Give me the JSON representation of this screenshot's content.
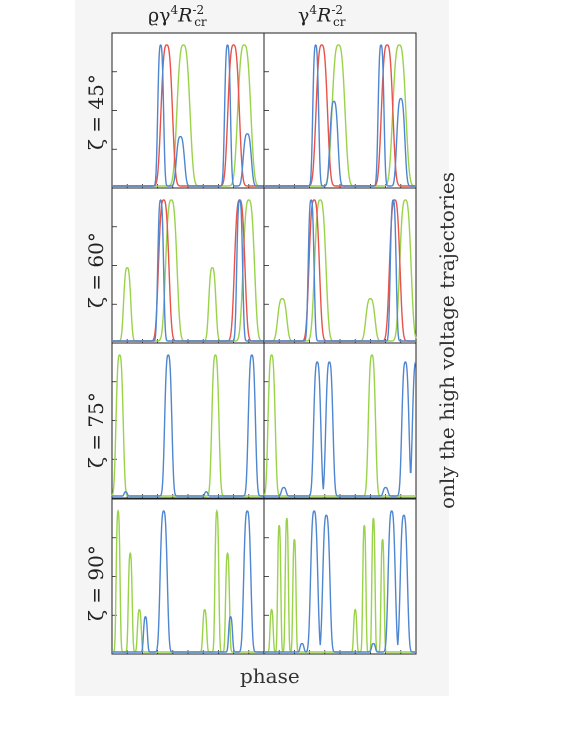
{
  "chart_data": {
    "type": "line",
    "xlabel": "phase",
    "side_label": "only the high voltage trajectories",
    "columns": [
      {
        "title_prefix": "ϱγ",
        "sup1": "4",
        "mid": "R",
        "sub": "cr",
        "sup2": "-2"
      },
      {
        "title_prefix": "γ",
        "sup1": "4",
        "mid": "R",
        "sub": "cr",
        "sup2": "-2"
      }
    ],
    "rows": [
      {
        "label": "ζ = 45°"
      },
      {
        "label": "ζ = 60°"
      },
      {
        "label": "ζ = 75°"
      },
      {
        "label": "ζ = 90°"
      }
    ],
    "xlim": [
      0,
      1
    ],
    "ylim": [
      0,
      1
    ],
    "series_colors": {
      "green": "#9ad24a",
      "red": "#e8524a",
      "blue": "#4f86d0"
    },
    "panels": [
      [
        {
          "green": [
            [
              0.47,
              0.04,
              1.0
            ],
            [
              0.87,
              0.04,
              1.0
            ]
          ],
          "red": [
            [
              0.36,
              0.035,
              1.0
            ],
            [
              0.8,
              0.035,
              1.0
            ]
          ],
          "blue": [
            [
              0.32,
              0.018,
              1.0
            ],
            [
              0.45,
              0.025,
              0.35
            ],
            [
              0.76,
              0.018,
              1.0
            ],
            [
              0.89,
              0.025,
              0.37
            ]
          ]
        },
        {
          "green": [
            [
              0.49,
              0.04,
              1.0
            ],
            [
              0.89,
              0.04,
              1.0
            ]
          ],
          "red": [
            [
              0.38,
              0.035,
              1.0
            ],
            [
              0.81,
              0.035,
              1.0
            ]
          ],
          "blue": [
            [
              0.34,
              0.018,
              1.0
            ],
            [
              0.46,
              0.025,
              0.6
            ],
            [
              0.77,
              0.018,
              1.0
            ],
            [
              0.9,
              0.025,
              0.62
            ]
          ]
        }
      ],
      [
        {
          "green": [
            [
              0.1,
              0.022,
              0.52
            ],
            [
              0.39,
              0.035,
              1.0
            ],
            [
              0.66,
              0.022,
              0.52
            ],
            [
              0.9,
              0.035,
              1.0
            ]
          ],
          "red": [
            [
              0.34,
              0.032,
              1.0
            ],
            [
              0.84,
              0.032,
              1.0
            ]
          ],
          "blue": [
            [
              0.32,
              0.018,
              1.0
            ],
            [
              0.84,
              0.018,
              1.0
            ]
          ]
        },
        {
          "green": [
            [
              0.12,
              0.028,
              0.3
            ],
            [
              0.37,
              0.035,
              1.0
            ],
            [
              0.7,
              0.028,
              0.3
            ],
            [
              0.93,
              0.035,
              1.0
            ]
          ],
          "red": [
            [
              0.33,
              0.032,
              1.0
            ],
            [
              0.86,
              0.032,
              1.0
            ]
          ],
          "blue": [
            [
              0.31,
              0.018,
              1.0
            ],
            [
              0.85,
              0.018,
              1.0
            ]
          ]
        }
      ],
      [
        {
          "green": [
            [
              0.05,
              0.022,
              1.0
            ],
            [
              0.68,
              0.022,
              1.0
            ]
          ],
          "blue": [
            [
              0.09,
              0.01,
              0.03
            ],
            [
              0.37,
              0.022,
              1.0
            ],
            [
              0.62,
              0.01,
              0.03
            ],
            [
              0.92,
              0.022,
              1.0
            ]
          ]
        },
        {
          "green": [
            [
              0.05,
              0.022,
              1.0
            ],
            [
              0.71,
              0.022,
              1.0
            ]
          ],
          "blue": [
            [
              0.13,
              0.015,
              0.06
            ],
            [
              0.35,
              0.022,
              0.95
            ],
            [
              0.43,
              0.022,
              0.95
            ],
            [
              0.8,
              0.015,
              0.06
            ],
            [
              0.93,
              0.022,
              0.95
            ],
            [
              1.0,
              0.022,
              0.95
            ]
          ]
        }
      ],
      [
        {
          "green": [
            [
              0.04,
              0.012,
              1.0
            ],
            [
              0.12,
              0.012,
              0.7
            ],
            [
              0.18,
              0.012,
              0.3
            ],
            [
              0.69,
              0.012,
              1.0
            ],
            [
              0.76,
              0.012,
              0.7
            ],
            [
              0.61,
              0.012,
              0.3
            ]
          ],
          "blue": [
            [
              0.34,
              0.022,
              1.0
            ],
            [
              0.22,
              0.012,
              0.25
            ],
            [
              0.89,
              0.022,
              1.0
            ],
            [
              0.78,
              0.012,
              0.25
            ]
          ]
        },
        {
          "green": [
            [
              0.1,
              0.01,
              0.9
            ],
            [
              0.15,
              0.01,
              0.95
            ],
            [
              0.2,
              0.01,
              0.8
            ],
            [
              0.05,
              0.01,
              0.3
            ],
            [
              0.66,
              0.01,
              0.9
            ],
            [
              0.72,
              0.01,
              0.95
            ],
            [
              0.78,
              0.01,
              0.8
            ],
            [
              0.6,
              0.01,
              0.3
            ]
          ],
          "blue": [
            [
              0.33,
              0.022,
              1.0
            ],
            [
              0.41,
              0.022,
              0.97
            ],
            [
              0.84,
              0.022,
              1.0
            ],
            [
              0.92,
              0.022,
              0.97
            ],
            [
              0.25,
              0.012,
              0.06
            ],
            [
              0.72,
              0.012,
              0.06
            ]
          ]
        }
      ]
    ]
  }
}
